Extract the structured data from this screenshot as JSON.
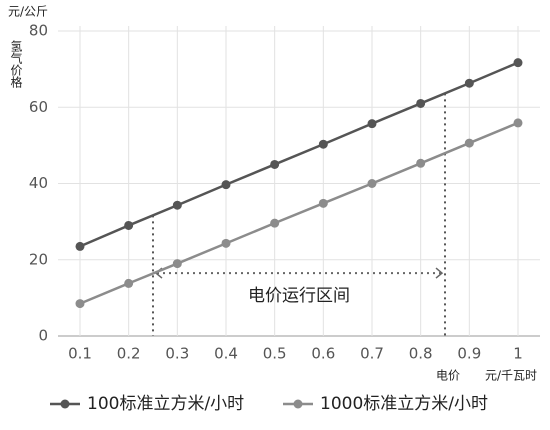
{
  "chart_data": {
    "type": "line",
    "y_unit": "元/公斤",
    "y_label": "氢气价格",
    "x_label": "电价",
    "x_unit": "元/千瓦时",
    "x": [
      0.1,
      0.2,
      0.3,
      0.4,
      0.5,
      0.6,
      0.7,
      0.8,
      0.9,
      1
    ],
    "series": [
      {
        "name": "100标准立方米/小时",
        "color": "#555555",
        "values": [
          23.5,
          29,
          34.3,
          39.7,
          45,
          50.3,
          55.7,
          61,
          66.3,
          71.7
        ]
      },
      {
        "name": "1000标准立方米/小时",
        "color": "#8c8c8c",
        "values": [
          8.5,
          13.8,
          19,
          24.3,
          29.6,
          34.8,
          40,
          45.3,
          50.6,
          55.9
        ]
      }
    ],
    "xlim": [
      0.1,
      1
    ],
    "xticks": [
      0.1,
      0.2,
      0.3,
      0.4,
      0.5,
      0.6,
      0.7,
      0.8,
      0.9,
      1
    ],
    "ylim": [
      0,
      80
    ],
    "yticks": [
      0,
      20,
      40,
      60,
      80
    ],
    "grid": true,
    "annotation": {
      "text": "电价运行区间",
      "range_x": [
        0.25,
        0.85
      ],
      "range_y": 16.5
    }
  }
}
